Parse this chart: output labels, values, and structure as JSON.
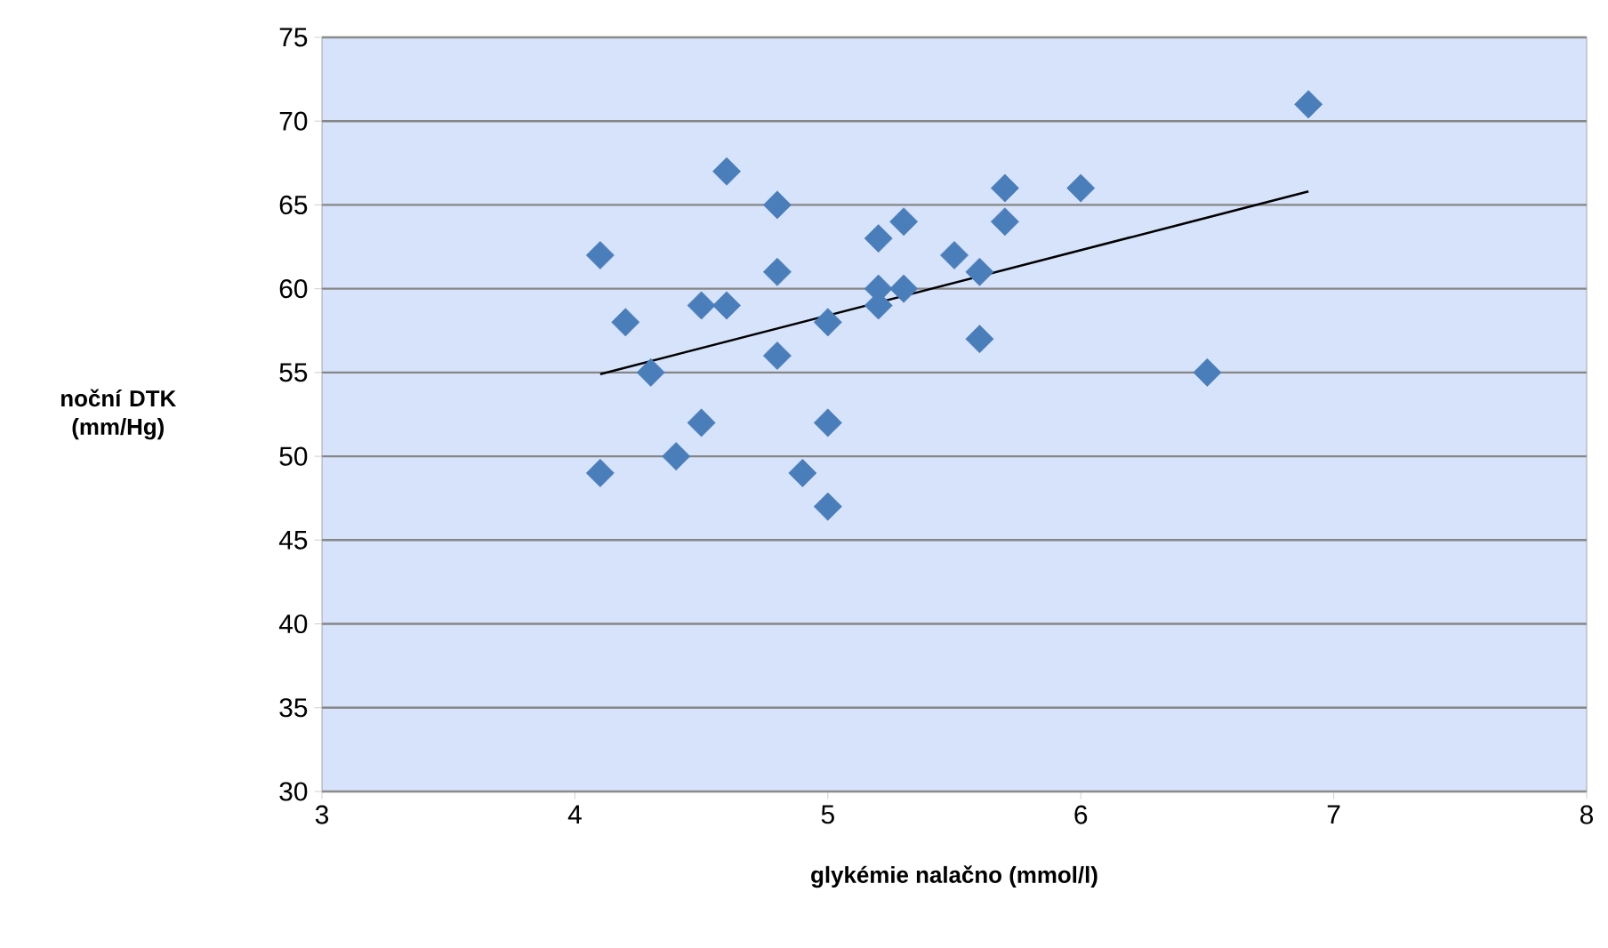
{
  "chart_data": {
    "type": "scatter",
    "xlabel": "glykémie nalačno (mmol/l)",
    "ylabel": "noční DTK (mm/Hg)",
    "xlim": [
      3,
      8
    ],
    "ylim": [
      30,
      75
    ],
    "xticks": [
      3,
      4,
      5,
      6,
      7,
      8
    ],
    "yticks": [
      30,
      35,
      40,
      45,
      50,
      55,
      60,
      65,
      70,
      75
    ],
    "grid": "y",
    "series": [
      {
        "marker": "diamond",
        "color": "#4a7ebb",
        "x": [
          4.1,
          4.1,
          4.2,
          4.3,
          4.4,
          4.5,
          4.5,
          4.6,
          4.6,
          4.8,
          4.8,
          4.8,
          4.9,
          5.0,
          5.0,
          5.0,
          5.2,
          5.2,
          5.2,
          5.3,
          5.3,
          5.5,
          5.6,
          5.6,
          5.7,
          5.7,
          6.0,
          6.5,
          6.9
        ],
        "values": [
          62,
          49,
          58,
          55,
          50,
          59,
          52,
          67,
          59,
          65,
          61,
          56,
          49,
          58,
          52,
          47,
          63,
          60,
          59,
          64,
          60,
          62,
          61,
          57,
          66,
          64,
          66,
          55,
          71
        ]
      },
      {
        "type": "line",
        "marker": "none",
        "color": "#000000",
        "x": [
          4.1,
          6.9
        ],
        "values": [
          54.9,
          65.8
        ]
      }
    ]
  }
}
